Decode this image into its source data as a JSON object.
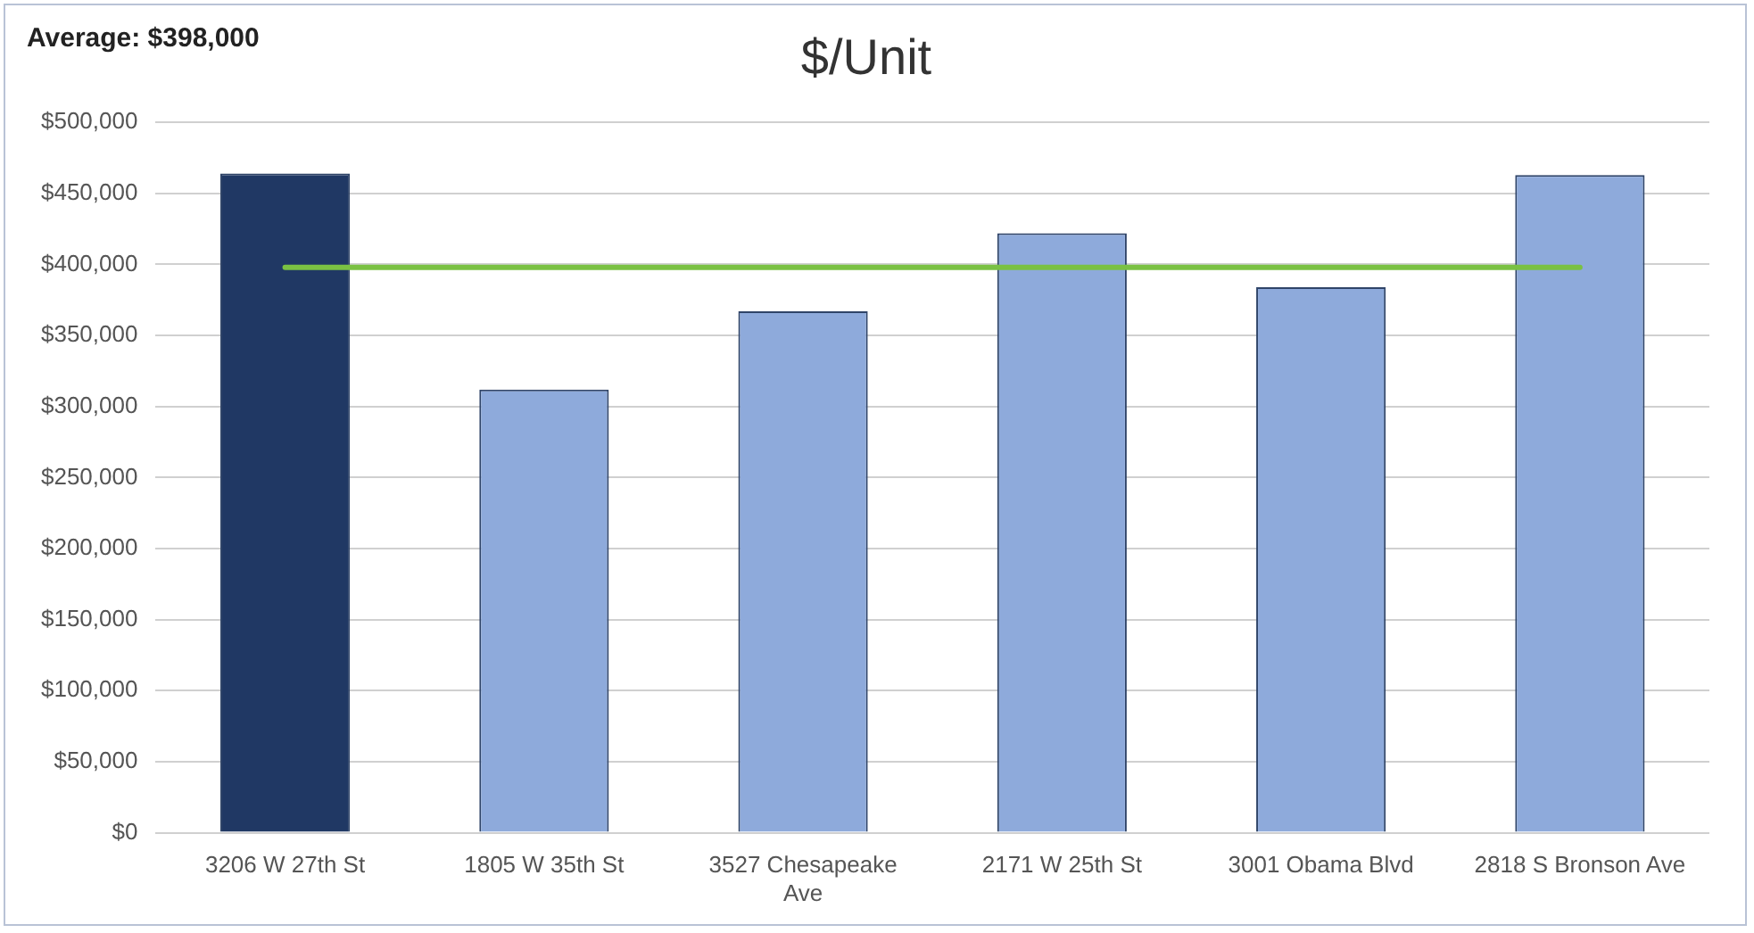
{
  "chart_data": {
    "type": "bar",
    "title": "$/Unit",
    "categories": [
      "3206 W 27th St",
      "1805 W 35th St",
      "3527 Chesapeake Ave",
      "2171 W 25th St",
      "3001 Obama Blvd",
      "2818 S Bronson Ave"
    ],
    "values": [
      464000,
      312000,
      367000,
      422000,
      384000,
      463000
    ],
    "colors": [
      "#203864",
      "#8eaadb",
      "#8eaadb",
      "#8eaadb",
      "#8eaadb",
      "#8eaadb"
    ],
    "ylim": [
      0,
      500000
    ],
    "yticks": [
      {
        "value": 0,
        "label": "$0"
      },
      {
        "value": 50000,
        "label": "$50,000"
      },
      {
        "value": 100000,
        "label": "$100,000"
      },
      {
        "value": 150000,
        "label": "$150,000"
      },
      {
        "value": 200000,
        "label": "$200,000"
      },
      {
        "value": 250000,
        "label": "$250,000"
      },
      {
        "value": 300000,
        "label": "$300,000"
      },
      {
        "value": 350000,
        "label": "$350,000"
      },
      {
        "value": 400000,
        "label": "$400,000"
      },
      {
        "value": 450000,
        "label": "$450,000"
      },
      {
        "value": 500000,
        "label": "$500,000"
      }
    ],
    "grid": "y",
    "legend": false,
    "annotations": [
      "Average: $398,000"
    ],
    "ref_lines": [
      {
        "axis": "y",
        "value": 398000,
        "color": "#7ac143"
      }
    ]
  }
}
